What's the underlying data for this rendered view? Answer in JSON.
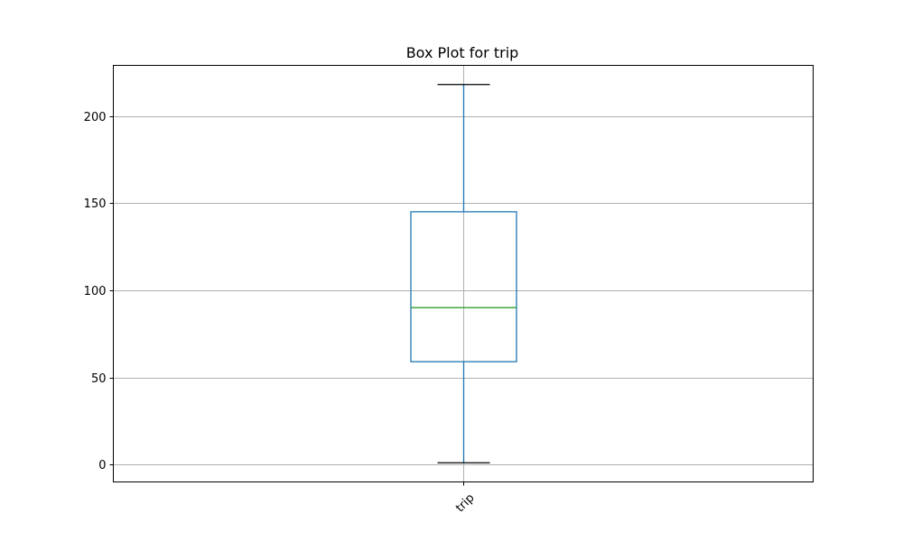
{
  "chart_data": {
    "type": "box",
    "title": "Box Plot for trip",
    "xlabel": "",
    "ylabel": "",
    "categories": [
      "trip"
    ],
    "boxes": [
      {
        "label": "trip",
        "whisker_low": 1,
        "q1": 59,
        "median": 90,
        "q3": 145,
        "whisker_high": 218
      }
    ],
    "ylim": [
      -10,
      229
    ],
    "yticks": [
      0,
      50,
      100,
      150,
      200
    ],
    "grid": true,
    "colors": {
      "box": "#1f77b4",
      "median": "#2ca02c",
      "cap": "#000000",
      "grid": "#b0b0b0"
    }
  }
}
